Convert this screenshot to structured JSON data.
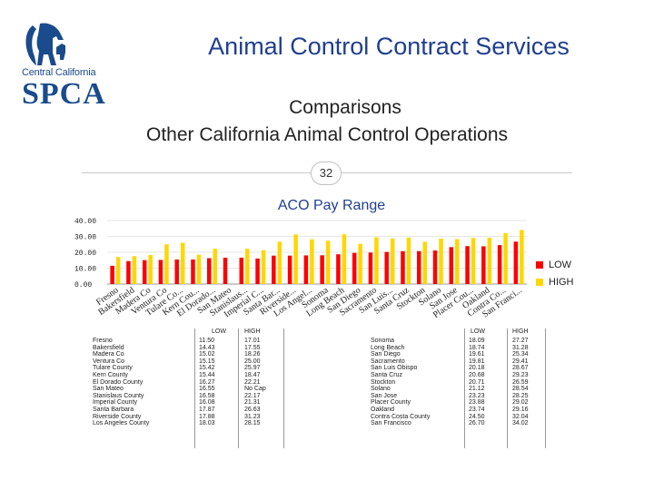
{
  "logo": {
    "org_line": "Central California",
    "org_name": "SPCA"
  },
  "header": {
    "title": "Animal Control Contract Services",
    "subtitle_line1": "Comparisons",
    "subtitle_line2": "Other California Animal Control Operations",
    "page_number": "32"
  },
  "colors": {
    "low": "#ff0000",
    "high": "#ffd700",
    "title": "#1f3f8f",
    "logo": "#1a4b8c"
  },
  "chart_data": {
    "type": "bar",
    "title": "ACO Pay Range",
    "categories": [
      "Fresno",
      "Bakersfield",
      "Madera Co",
      "Ventura Co",
      "Tulare Co...",
      "Kern Cou...",
      "El Dorado...",
      "San Mateo",
      "Stanislaus...",
      "Imperial C...",
      "Santa Bar...",
      "Riverside...",
      "Los Angel...",
      "Sonoma",
      "Long Beach",
      "San Diego",
      "Sacramento",
      "San Luis...",
      "Santa Cruz",
      "Stockton",
      "Solano",
      "San Jose",
      "Placer Cou...",
      "Oakland",
      "Contra Co...",
      "San Franci..."
    ],
    "series": [
      {
        "name": "LOW",
        "values": [
          11.5,
          14.43,
          15.02,
          15.15,
          15.42,
          15.44,
          16.27,
          16.55,
          16.58,
          16.08,
          17.87,
          17.88,
          18.03,
          18.09,
          18.74,
          19.61,
          19.81,
          20.18,
          20.68,
          20.71,
          21.12,
          23.23,
          23.88,
          23.74,
          24.5,
          26.7
        ]
      },
      {
        "name": "HIGH",
        "values": [
          17.01,
          17.55,
          18.26,
          25.0,
          25.97,
          18.47,
          22.21,
          0,
          22.17,
          21.31,
          26.63,
          31.23,
          28.15,
          27.27,
          31.28,
          25.34,
          29.41,
          28.67,
          29.23,
          26.59,
          28.54,
          28.25,
          29.02,
          29.16,
          32.04,
          34.02
        ]
      }
    ],
    "ylim": [
      0,
      40
    ],
    "yticks": [
      "0.00",
      "10.00",
      "20.00",
      "30.00",
      "40.00"
    ],
    "legend": [
      "LOW",
      "HIGH"
    ],
    "legend_position": "right"
  },
  "table_left": {
    "headers": [
      "LOW",
      "HIGH"
    ],
    "names": [
      "Fresno",
      "Bakersfield",
      "Madera Co",
      "Ventura Co",
      "Tulare County",
      "Kern County",
      "El Dorado County",
      "San Mateo",
      "Stanislaus County",
      "Imperial County",
      "Santa Barbara",
      "Riverside County",
      "Los Angeles County"
    ],
    "low": [
      "11.50",
      "14.43",
      "15.02",
      "15.15",
      "15.42",
      "15.44",
      "16.27",
      "16.55",
      "16.58",
      "16.08",
      "17.87",
      "17.88",
      "18.03"
    ],
    "high": [
      "17.01",
      "17.55",
      "18.26",
      "25.00",
      "25.97",
      "18.47",
      "22.21",
      "No Cap",
      "22.17",
      "21.31",
      "26.63",
      "31.23",
      "28.15"
    ]
  },
  "table_right": {
    "headers": [
      "LOW",
      "HIGH"
    ],
    "names": [
      "Sonoma",
      "Long Beach",
      "San Diego",
      "Sacramento",
      "San Luis Obispo",
      "Santa Cruz",
      "Stockton",
      "Solano",
      "San Jose",
      "Placer County",
      "Oakland",
      "Contra Costa County",
      "San Francisco"
    ],
    "low": [
      "18.09",
      "18.74",
      "19.61",
      "19.81",
      "20.18",
      "20.68",
      "20.71",
      "21.12",
      "23.23",
      "23.88",
      "23.74",
      "24.50",
      "26.70"
    ],
    "high": [
      "27.27",
      "31.28",
      "25.34",
      "29.41",
      "28.67",
      "29.23",
      "26.59",
      "28.54",
      "28.25",
      "29.02",
      "29.16",
      "32.04",
      "34.02"
    ]
  }
}
